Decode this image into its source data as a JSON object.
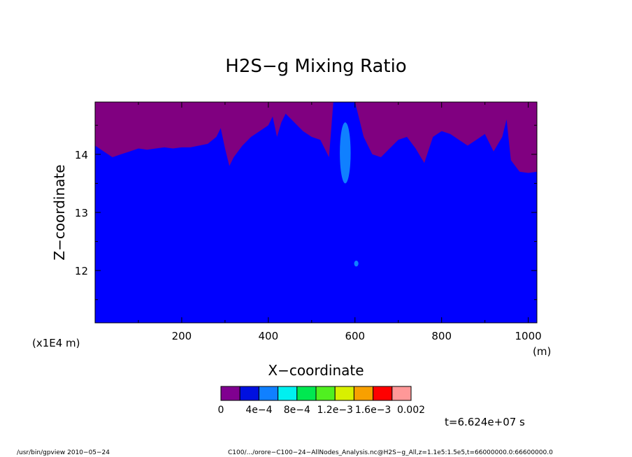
{
  "chart_data": {
    "type": "heatmap",
    "title": "H2S−g Mixing Ratio",
    "xlabel": "X−coordinate",
    "ylabel": "Z−coordinate",
    "x_unit": "(m)",
    "y_unit": "(x1E4 m)",
    "xlim": [
      0,
      1020
    ],
    "ylim": [
      11.1,
      14.9
    ],
    "x_ticks": [
      200,
      400,
      600,
      800,
      1000
    ],
    "x_tick_labels": [
      "200",
      "400",
      "600",
      "800",
      "1000"
    ],
    "y_ticks": [
      12,
      13,
      14
    ],
    "y_tick_labels": [
      "12",
      "13",
      "14"
    ],
    "levels": [
      0,
      0.0002,
      0.0004,
      0.0006,
      0.0008,
      0.001,
      0.0012,
      0.0014,
      0.0016,
      0.0018,
      0.002
    ],
    "colorbar_labels": [
      "0",
      "4e−4",
      "8e−4",
      "1.2e−3",
      "1.6e−3",
      "0.002"
    ],
    "colorbar_colors": [
      "#800080",
      "#0000ff",
      "#0080ff",
      "#00ffff",
      "#00ff80",
      "#00ff00",
      "#c8ff00",
      "#ffff00",
      "#ff8000",
      "#ff0000",
      "#ff9090"
    ],
    "colorbar_swatch_colors": [
      "#800090",
      "#0010e0",
      "#1080ff",
      "#00f0f0",
      "#00e850",
      "#50f020",
      "#d8f000",
      "#f8a000",
      "#ff0000",
      "#ff9898"
    ],
    "boundary_0_to_2e-4": {
      "x": [
        0,
        20,
        40,
        60,
        80,
        100,
        120,
        140,
        160,
        180,
        200,
        220,
        240,
        260,
        280,
        290,
        300,
        310,
        320,
        340,
        360,
        380,
        400,
        410,
        420,
        430,
        440,
        460,
        480,
        500,
        520,
        540,
        550,
        560,
        580,
        600,
        620,
        640,
        660,
        680,
        700,
        720,
        740,
        760,
        780,
        800,
        820,
        840,
        860,
        880,
        900,
        920,
        940,
        950,
        960,
        980,
        1000,
        1020
      ],
      "z": [
        14.15,
        14.05,
        13.95,
        14.0,
        14.05,
        14.1,
        14.08,
        14.1,
        14.12,
        14.1,
        14.12,
        14.12,
        14.15,
        14.18,
        14.3,
        14.45,
        14.1,
        13.8,
        13.95,
        14.15,
        14.3,
        14.4,
        14.5,
        14.65,
        14.3,
        14.55,
        14.7,
        14.55,
        14.4,
        14.3,
        14.25,
        13.95,
        14.9,
        14.9,
        14.9,
        14.9,
        14.3,
        14.0,
        13.95,
        14.1,
        14.25,
        14.3,
        14.1,
        13.85,
        14.3,
        14.4,
        14.35,
        14.25,
        14.15,
        14.25,
        14.35,
        14.05,
        14.3,
        14.6,
        13.9,
        13.7,
        13.68,
        13.7
      ]
    },
    "regions_above_2e-4": [
      {
        "range": "2e−4 to 4e−4",
        "x_range": [
          565,
          590
        ],
        "z_range": [
          13.5,
          14.55
        ]
      },
      {
        "range": "2e−4 to 4e−4",
        "x_range": [
          598,
          608
        ],
        "z_range": [
          12.07,
          12.17
        ]
      }
    ]
  },
  "footer": {
    "left": "/usr/bin/gpview  2010−05−24",
    "right": "C100/.../orore−C100−24−AllNodes_Analysis.nc@H2S−g_All,z=1.1e5:1.5e5,t=66000000.0:66600000.0",
    "time": "t=6.624e+07 s"
  }
}
